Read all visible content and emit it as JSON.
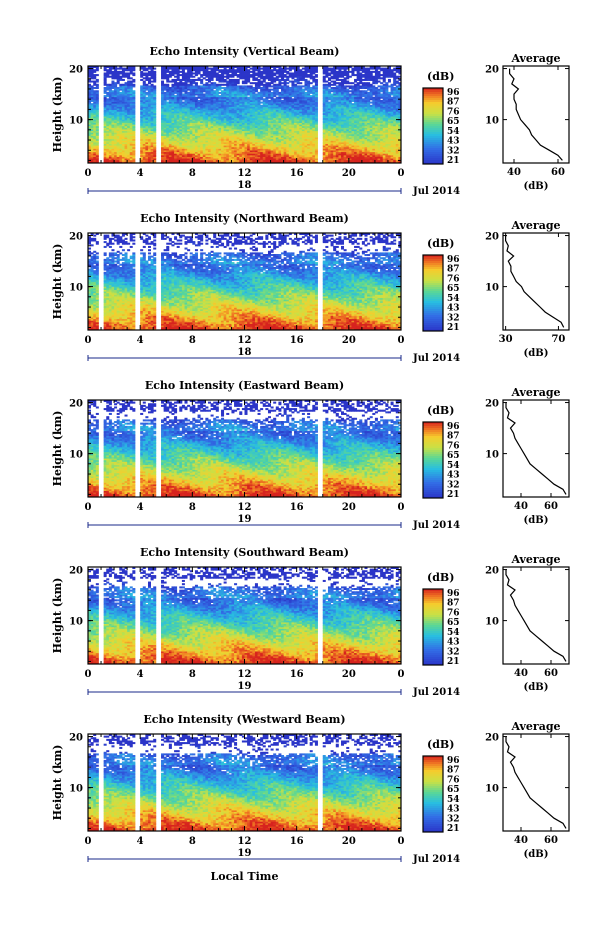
{
  "figure": {
    "x_title": "Local Time",
    "date_label": "Jul 2014",
    "colorbar_unit": "(dB)",
    "colorbar_ticks": [
      "96",
      "87",
      "76",
      "65",
      "54",
      "43",
      "32",
      "21"
    ],
    "x_ticks": [
      "0",
      "4",
      "8",
      "12",
      "16",
      "20",
      "0"
    ],
    "y_ticks": [
      "20",
      "10"
    ],
    "avg_title": "Average",
    "avg_xlabel": "(dB)",
    "colors": {
      "low": "#2b35c8",
      "mid": "#21c9d8",
      "high": "#f0d030",
      "peak": "#e8321e",
      "gap": "#ffffff"
    }
  },
  "chart_data": [
    {
      "type": "heatmap",
      "title": "Echo Intensity (Vertical Beam)",
      "ylabel": "Height (km)",
      "day": "18",
      "xlim": [
        0,
        24
      ],
      "ylim": [
        1.5,
        20.5
      ],
      "clim": [
        21,
        96
      ],
      "data_gaps_hours": [
        [
          0.8,
          1.2
        ],
        [
          3.7,
          4.0
        ],
        [
          5.3,
          5.6
        ],
        [
          17.6,
          17.9
        ]
      ],
      "avg_profile": {
        "x_ticks": [
          "40",
          "60"
        ],
        "xlim": [
          35,
          65
        ],
        "heights_km": [
          2,
          3,
          4,
          5,
          6,
          7,
          8,
          9,
          10,
          11,
          12,
          13,
          14,
          15,
          16,
          17,
          18,
          19,
          20
        ],
        "values_db": [
          62,
          60,
          56,
          52,
          50,
          48,
          47,
          45,
          43,
          42,
          41,
          41,
          40,
          40,
          42,
          39,
          40,
          38,
          38
        ]
      }
    },
    {
      "type": "heatmap",
      "title": "Echo Intensity (Northward Beam)",
      "ylabel": "Height (km)",
      "day": "18",
      "xlim": [
        0,
        24
      ],
      "ylim": [
        1.5,
        20.5
      ],
      "clim": [
        21,
        96
      ],
      "data_gaps_hours": [
        [
          0.8,
          1.2
        ],
        [
          3.7,
          4.0
        ],
        [
          5.3,
          5.6
        ],
        [
          17.6,
          17.9
        ]
      ],
      "avg_profile": {
        "x_ticks": [
          "30",
          "70"
        ],
        "xlim": [
          28,
          78
        ],
        "heights_km": [
          2,
          3,
          4,
          5,
          6,
          7,
          8,
          9,
          10,
          11,
          12,
          13,
          14,
          15,
          16,
          17,
          18,
          19,
          20
        ],
        "values_db": [
          74,
          72,
          66,
          60,
          56,
          52,
          48,
          44,
          42,
          38,
          36,
          34,
          34,
          32,
          36,
          31,
          32,
          30,
          30
        ]
      }
    },
    {
      "type": "heatmap",
      "title": "Echo Intensity (Eastward Beam)",
      "ylabel": "Height (km)",
      "day": "19",
      "xlim": [
        0,
        24
      ],
      "ylim": [
        1.5,
        20.5
      ],
      "clim": [
        21,
        96
      ],
      "data_gaps_hours": [
        [
          0.8,
          1.2
        ],
        [
          3.7,
          4.0
        ],
        [
          5.3,
          5.6
        ],
        [
          17.6,
          17.9
        ]
      ],
      "avg_profile": {
        "x_ticks": [
          "40",
          "60"
        ],
        "xlim": [
          28,
          72
        ],
        "heights_km": [
          2,
          3,
          4,
          5,
          6,
          7,
          8,
          9,
          10,
          11,
          12,
          13,
          14,
          15,
          16,
          17,
          18,
          19,
          20
        ],
        "values_db": [
          70,
          68,
          62,
          58,
          54,
          50,
          46,
          44,
          42,
          40,
          38,
          36,
          35,
          33,
          36,
          31,
          32,
          30,
          30
        ]
      }
    },
    {
      "type": "heatmap",
      "title": "Echo Intensity (Southward Beam)",
      "ylabel": "Height (km)",
      "day": "19",
      "xlim": [
        0,
        24
      ],
      "ylim": [
        1.5,
        20.5
      ],
      "clim": [
        21,
        96
      ],
      "data_gaps_hours": [
        [
          0.8,
          1.2
        ],
        [
          3.7,
          4.0
        ],
        [
          5.3,
          5.6
        ],
        [
          17.6,
          17.9
        ]
      ],
      "avg_profile": {
        "x_ticks": [
          "40",
          "60"
        ],
        "xlim": [
          28,
          72
        ],
        "heights_km": [
          2,
          3,
          4,
          5,
          6,
          7,
          8,
          9,
          10,
          11,
          12,
          13,
          14,
          15,
          16,
          17,
          18,
          19,
          20
        ],
        "values_db": [
          70,
          68,
          62,
          58,
          54,
          50,
          46,
          44,
          42,
          40,
          38,
          36,
          35,
          33,
          36,
          31,
          32,
          30,
          30
        ]
      }
    },
    {
      "type": "heatmap",
      "title": "Echo Intensity (Westward Beam)",
      "ylabel": "Height (km)",
      "day": "19",
      "xlim": [
        0,
        24
      ],
      "ylim": [
        1.5,
        20.5
      ],
      "clim": [
        21,
        96
      ],
      "data_gaps_hours": [
        [
          0.8,
          1.2
        ],
        [
          3.7,
          4.0
        ],
        [
          5.3,
          5.6
        ],
        [
          17.6,
          17.9
        ]
      ],
      "avg_profile": {
        "x_ticks": [
          "40",
          "60"
        ],
        "xlim": [
          28,
          72
        ],
        "heights_km": [
          2,
          3,
          4,
          5,
          6,
          7,
          8,
          9,
          10,
          11,
          12,
          13,
          14,
          15,
          16,
          17,
          18,
          19,
          20
        ],
        "values_db": [
          70,
          68,
          62,
          58,
          54,
          50,
          46,
          44,
          42,
          40,
          38,
          36,
          35,
          33,
          36,
          31,
          32,
          30,
          30
        ]
      }
    }
  ]
}
